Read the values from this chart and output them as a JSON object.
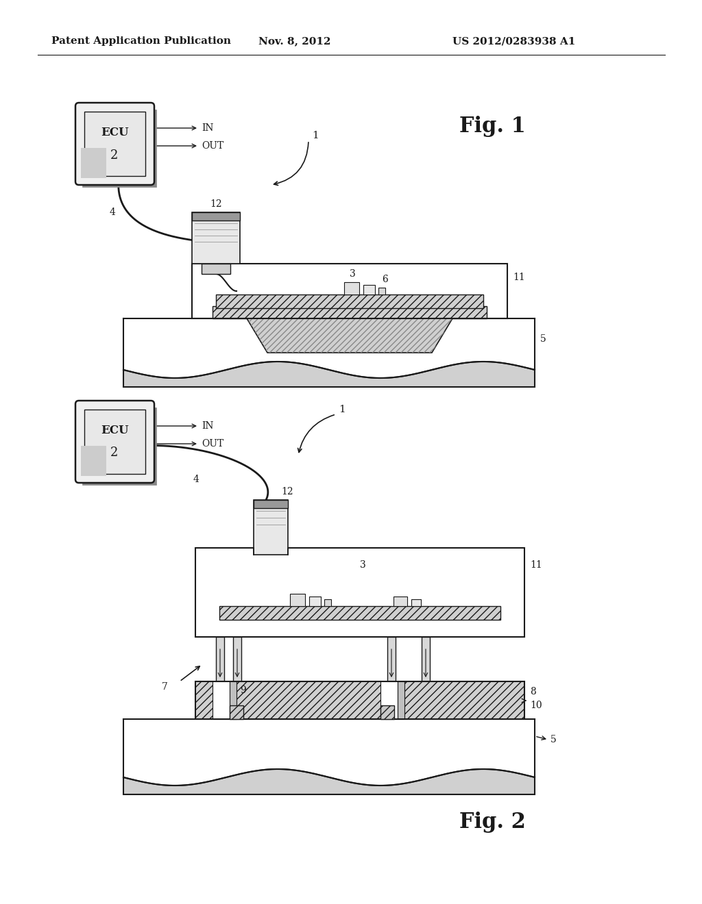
{
  "bg_color": "#ffffff",
  "line_color": "#1a1a1a",
  "header_left": "Patent Application Publication",
  "header_center": "Nov. 8, 2012",
  "header_right": "US 2012/0283938 A1",
  "fig1_label": "Fig. 1",
  "fig2_label": "Fig. 2",
  "hatch_fill": "#c8c8c8",
  "light_fill": "#f0f0f0",
  "mid_fill": "#d8d8d8"
}
